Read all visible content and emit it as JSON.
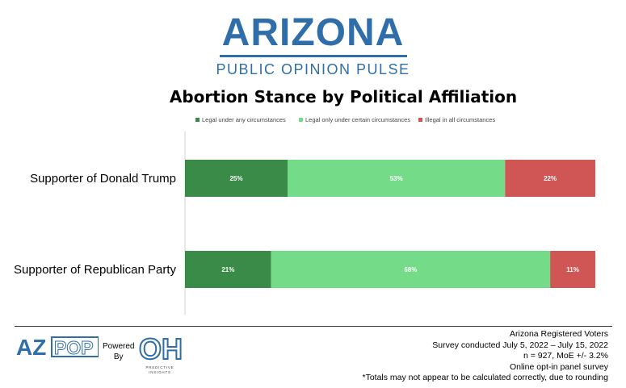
{
  "logo": {
    "main": "ARIZONA",
    "sub": "PUBLIC OPINION PULSE"
  },
  "chart_data": {
    "type": "bar",
    "orientation": "horizontal",
    "stacked": true,
    "title": "Abortion Stance by Political Affiliation",
    "categories": [
      "Supporter of Donald Trump",
      "Supporter of Republican Party"
    ],
    "series": [
      {
        "name": "Legal under any circumstances",
        "color": "#3a8a48",
        "values": [
          25,
          21
        ],
        "labels": [
          "25%",
          "21%"
        ]
      },
      {
        "name": "Legal only under certain circumstances",
        "color": "#74dc88",
        "values": [
          53,
          68
        ],
        "labels": [
          "53%",
          "68%"
        ]
      },
      {
        "name": "Illegal in all circumstances",
        "color": "#d05555",
        "values": [
          22,
          11
        ],
        "labels": [
          "22%",
          "11%"
        ]
      }
    ],
    "xlim": [
      0,
      100
    ],
    "grid": false,
    "legend_position": "top"
  },
  "footer": {
    "azpop_logo": "AZPOP",
    "powered_by": [
      "Powered",
      "By"
    ],
    "oh_logo": "OH",
    "oh_caption": "PREDICTIVE INSIGHTS",
    "notes": [
      "Arizona Registered Voters",
      "Survey conducted July 5, 2022 – July 15, 2022",
      "n = 927, MoE +/- 3.2%",
      "Online opt-in panel survey",
      "*Totals may not appear to be calculated correctly, due to rounding"
    ]
  }
}
